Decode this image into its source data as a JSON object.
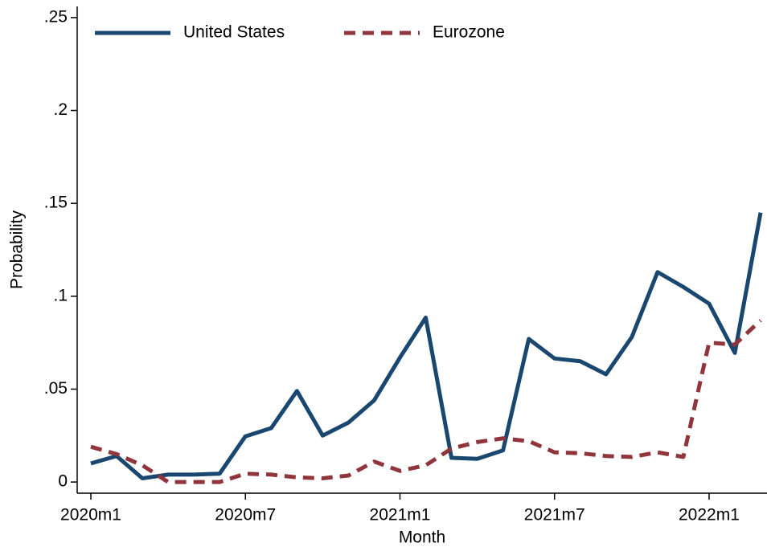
{
  "chart_data": {
    "type": "line",
    "x_label": "Month",
    "y_label": "Probability",
    "categories": [
      "2020m1",
      null,
      null,
      null,
      null,
      null,
      "2020m7",
      null,
      null,
      null,
      null,
      null,
      "2021m1",
      null,
      null,
      null,
      null,
      null,
      "2021m7",
      null,
      null,
      null,
      null,
      null,
      "2022m1",
      null,
      null
    ],
    "series": [
      {
        "name": "United States",
        "color": "#1a476f",
        "dash": "solid",
        "values": [
          0.01,
          0.014,
          0.002,
          0.004,
          0.004,
          0.0045,
          0.0246,
          0.029,
          0.049,
          0.025,
          0.032,
          0.044,
          0.067,
          0.0885,
          0.013,
          0.0125,
          0.017,
          0.077,
          0.0665,
          0.065,
          0.058,
          0.078,
          0.113,
          0.105,
          0.096,
          0.0695,
          0.145
        ]
      },
      {
        "name": "Eurozone",
        "color": "#90353b",
        "dash": "dashed",
        "values": [
          0.019,
          0.015,
          0.009,
          0,
          0,
          0,
          0.0045,
          0.004,
          0.0025,
          0.002,
          0.0035,
          0.011,
          0.006,
          0.009,
          0.018,
          0.0215,
          0.0235,
          0.022,
          0.016,
          0.0155,
          0.014,
          0.0135,
          0.016,
          0.0135,
          0.075,
          0.074,
          0.087
        ]
      }
    ],
    "ylim": [
      -0.006,
      0.256
    ],
    "yticks": [
      0,
      {
        "value": 0.05,
        "label": ".05"
      },
      {
        "value": 0.1,
        "label": ".1"
      },
      {
        "value": 0.15,
        "label": ".15"
      },
      {
        "value": 0.2,
        "label": ".2"
      },
      {
        "value": 0.25,
        "label": ".25"
      }
    ],
    "legend": "top-left"
  }
}
